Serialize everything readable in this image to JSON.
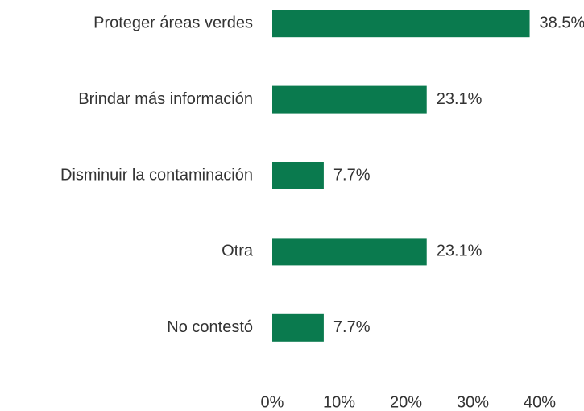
{
  "chart_data": {
    "type": "bar",
    "orientation": "horizontal",
    "categories": [
      "Proteger áreas verdes",
      "Brindar más información",
      "Disminuir la contaminación",
      "Otra",
      "No contestó"
    ],
    "values": [
      38.5,
      23.1,
      7.7,
      23.1,
      7.7
    ],
    "value_labels": [
      "38.5%",
      "23.1%",
      "7.7%",
      "23.1%",
      "7.7%"
    ],
    "color": "#0a7a4e",
    "xlim": [
      0,
      40
    ],
    "xticks": [
      {
        "value": 0,
        "label": "0%"
      },
      {
        "value": 10,
        "label": "10%"
      },
      {
        "value": 20,
        "label": "20%"
      },
      {
        "value": 30,
        "label": "30%"
      },
      {
        "value": 40,
        "label": "40%"
      }
    ],
    "grid": false
  }
}
